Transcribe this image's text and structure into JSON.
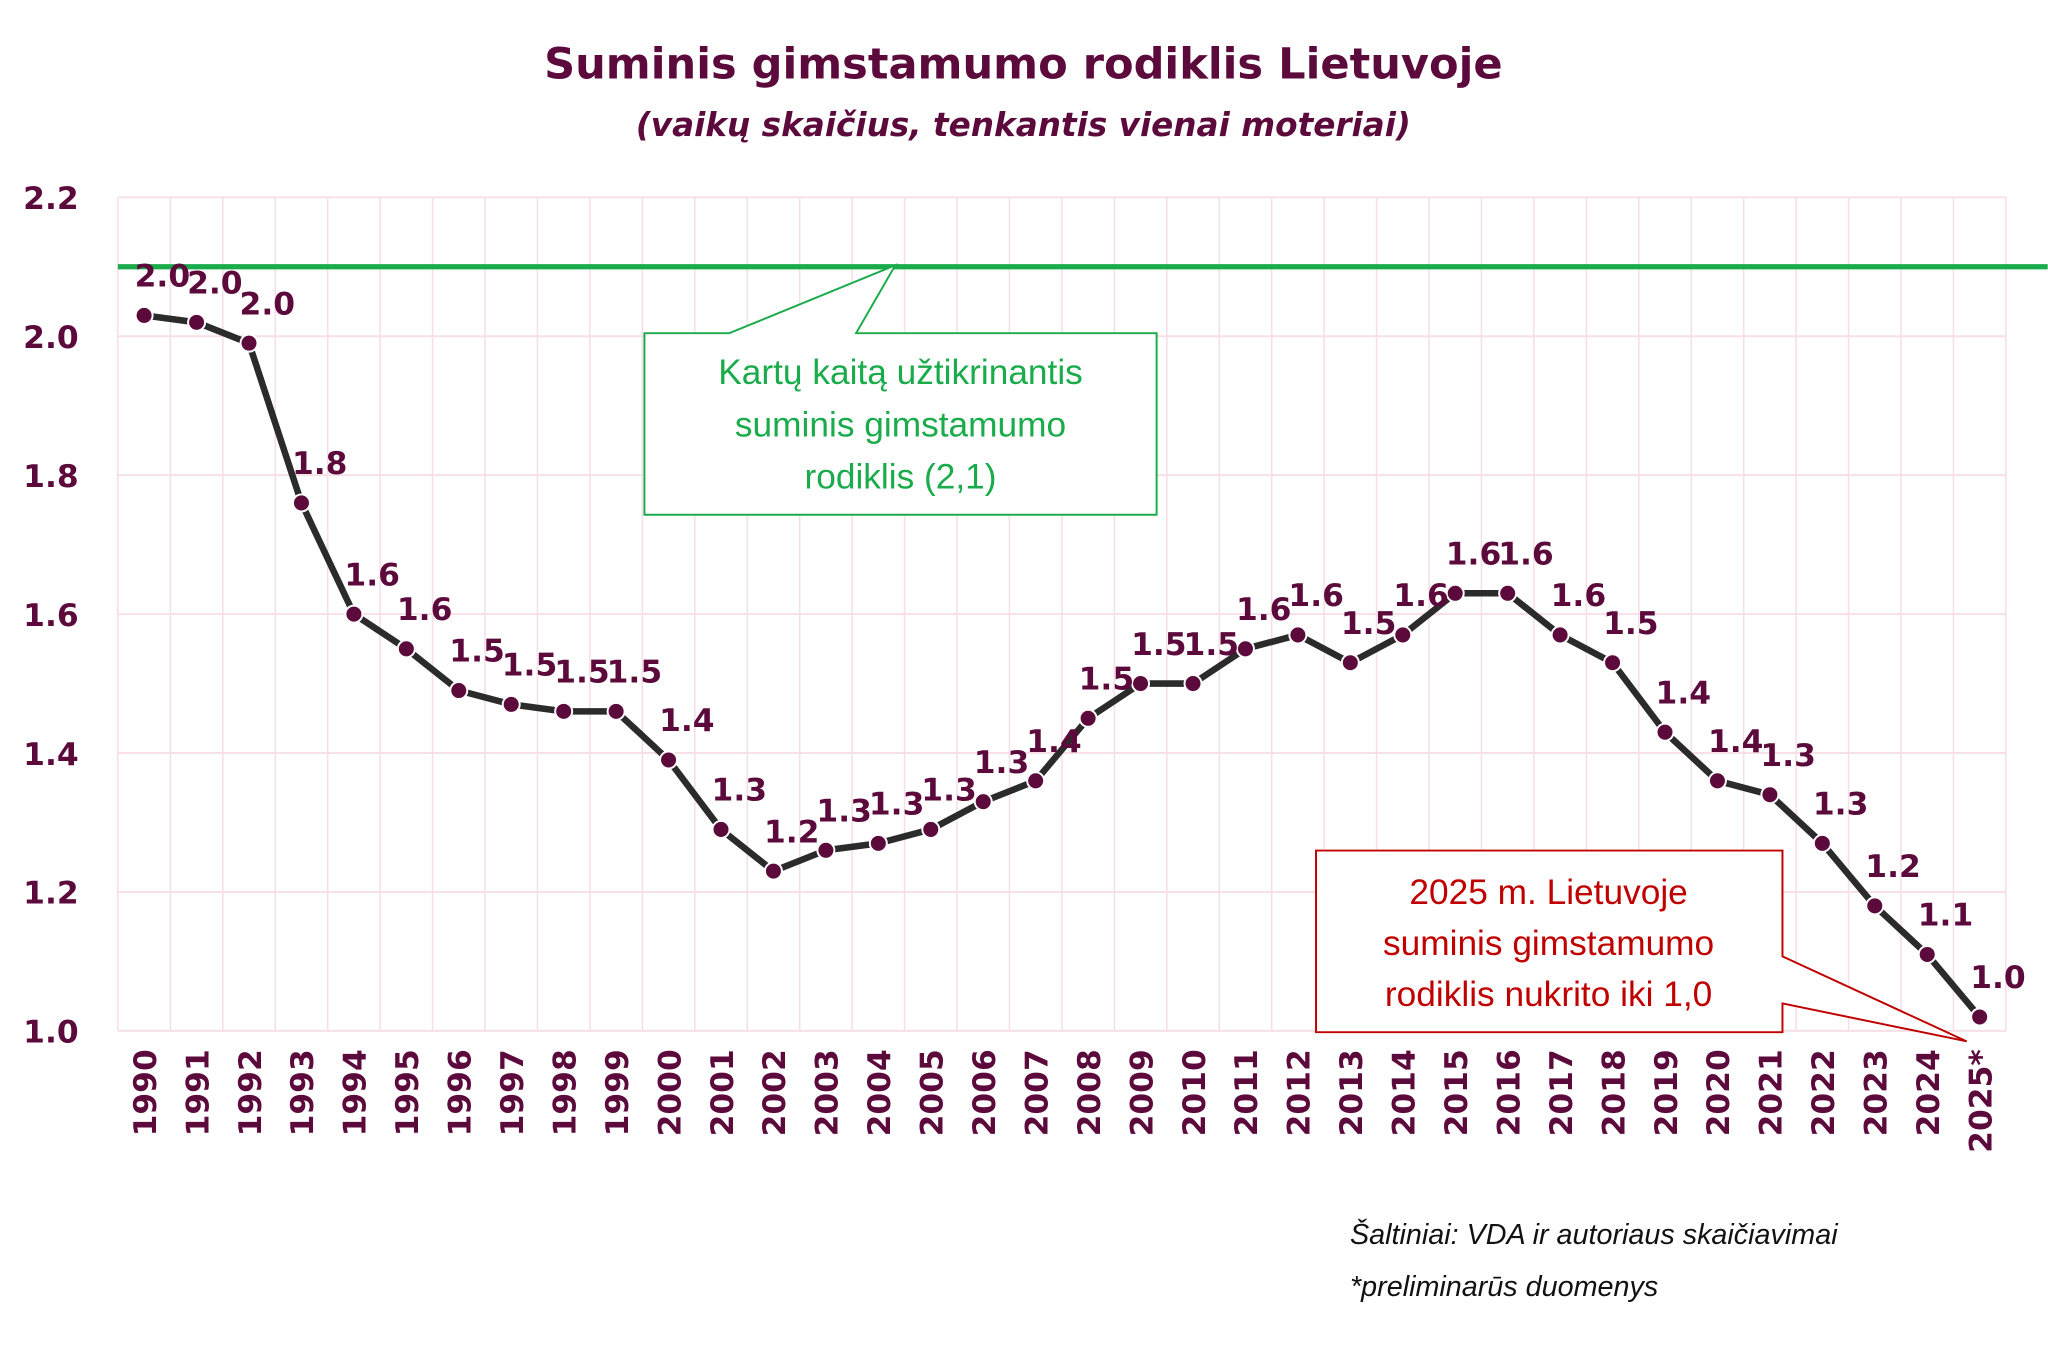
{
  "chart_data": {
    "type": "line",
    "title": "Suminis gimstamumo rodiklis Lietuvoje",
    "subtitle": "(vaikų skaičius, tenkantis vienai moteriai)",
    "categories": [
      "1990",
      "1991",
      "1992",
      "1993",
      "1994",
      "1995",
      "1996",
      "1997",
      "1998",
      "1999",
      "2000",
      "2001",
      "2002",
      "2003",
      "2004",
      "2005",
      "2006",
      "2007",
      "2008",
      "2009",
      "2010",
      "2011",
      "2012",
      "2013",
      "2014",
      "2015",
      "2016",
      "2017",
      "2018",
      "2019",
      "2020",
      "2021",
      "2022",
      "2023",
      "2024",
      "2025*"
    ],
    "values": [
      2.03,
      2.02,
      1.99,
      1.76,
      1.6,
      1.55,
      1.49,
      1.47,
      1.46,
      1.46,
      1.39,
      1.29,
      1.23,
      1.26,
      1.27,
      1.29,
      1.33,
      1.36,
      1.45,
      1.5,
      1.5,
      1.55,
      1.57,
      1.53,
      1.57,
      1.63,
      1.63,
      1.57,
      1.53,
      1.43,
      1.36,
      1.34,
      1.27,
      1.18,
      1.11,
      1.02
    ],
    "data_labels": [
      "2.0",
      "2.0",
      "2.0",
      "1.8",
      "1.6",
      "1.6",
      "1.5",
      "1.5",
      "1.5",
      "1.5",
      "1.4",
      "1.3",
      "1.2",
      "1.3",
      "1.3",
      "1.3",
      "1.3",
      "1.4",
      "1.5",
      "1.5",
      "1.5",
      "1.6",
      "1.6",
      "1.5",
      "1.6",
      "1.6",
      "1.6",
      "1.6",
      "1.5",
      "1.4",
      "1.4",
      "1.3",
      "1.3",
      "1.2",
      "1.1",
      "1.0"
    ],
    "ylim": [
      1.0,
      2.2
    ],
    "yticks": [
      "1.0",
      "1.2",
      "1.4",
      "1.6",
      "1.8",
      "2.0",
      "2.2"
    ],
    "grid": true,
    "reference_line": {
      "value": 2.1,
      "color": "#1aab4b"
    },
    "annotations": [
      {
        "lines": [
          "Kartų kaitą užtikrinantis",
          "suminis gimstamumo",
          "rodiklis (2,1)"
        ],
        "color": "#1aab4b"
      },
      {
        "lines": [
          "2025 m. Lietuvoje",
          "suminis gimstamumo",
          "rodiklis nukrito iki 1,0"
        ],
        "color": "#c00000"
      }
    ],
    "colors": {
      "line": "#2b2b2b",
      "marker": "#5c0a3c",
      "text": "#5c0a3c",
      "grid": "#f6dfe6"
    }
  },
  "footnotes": {
    "source": "Šaltiniai: VDA ir autoriaus skaičiavimai",
    "preliminary": "*preliminarūs duomenys"
  }
}
